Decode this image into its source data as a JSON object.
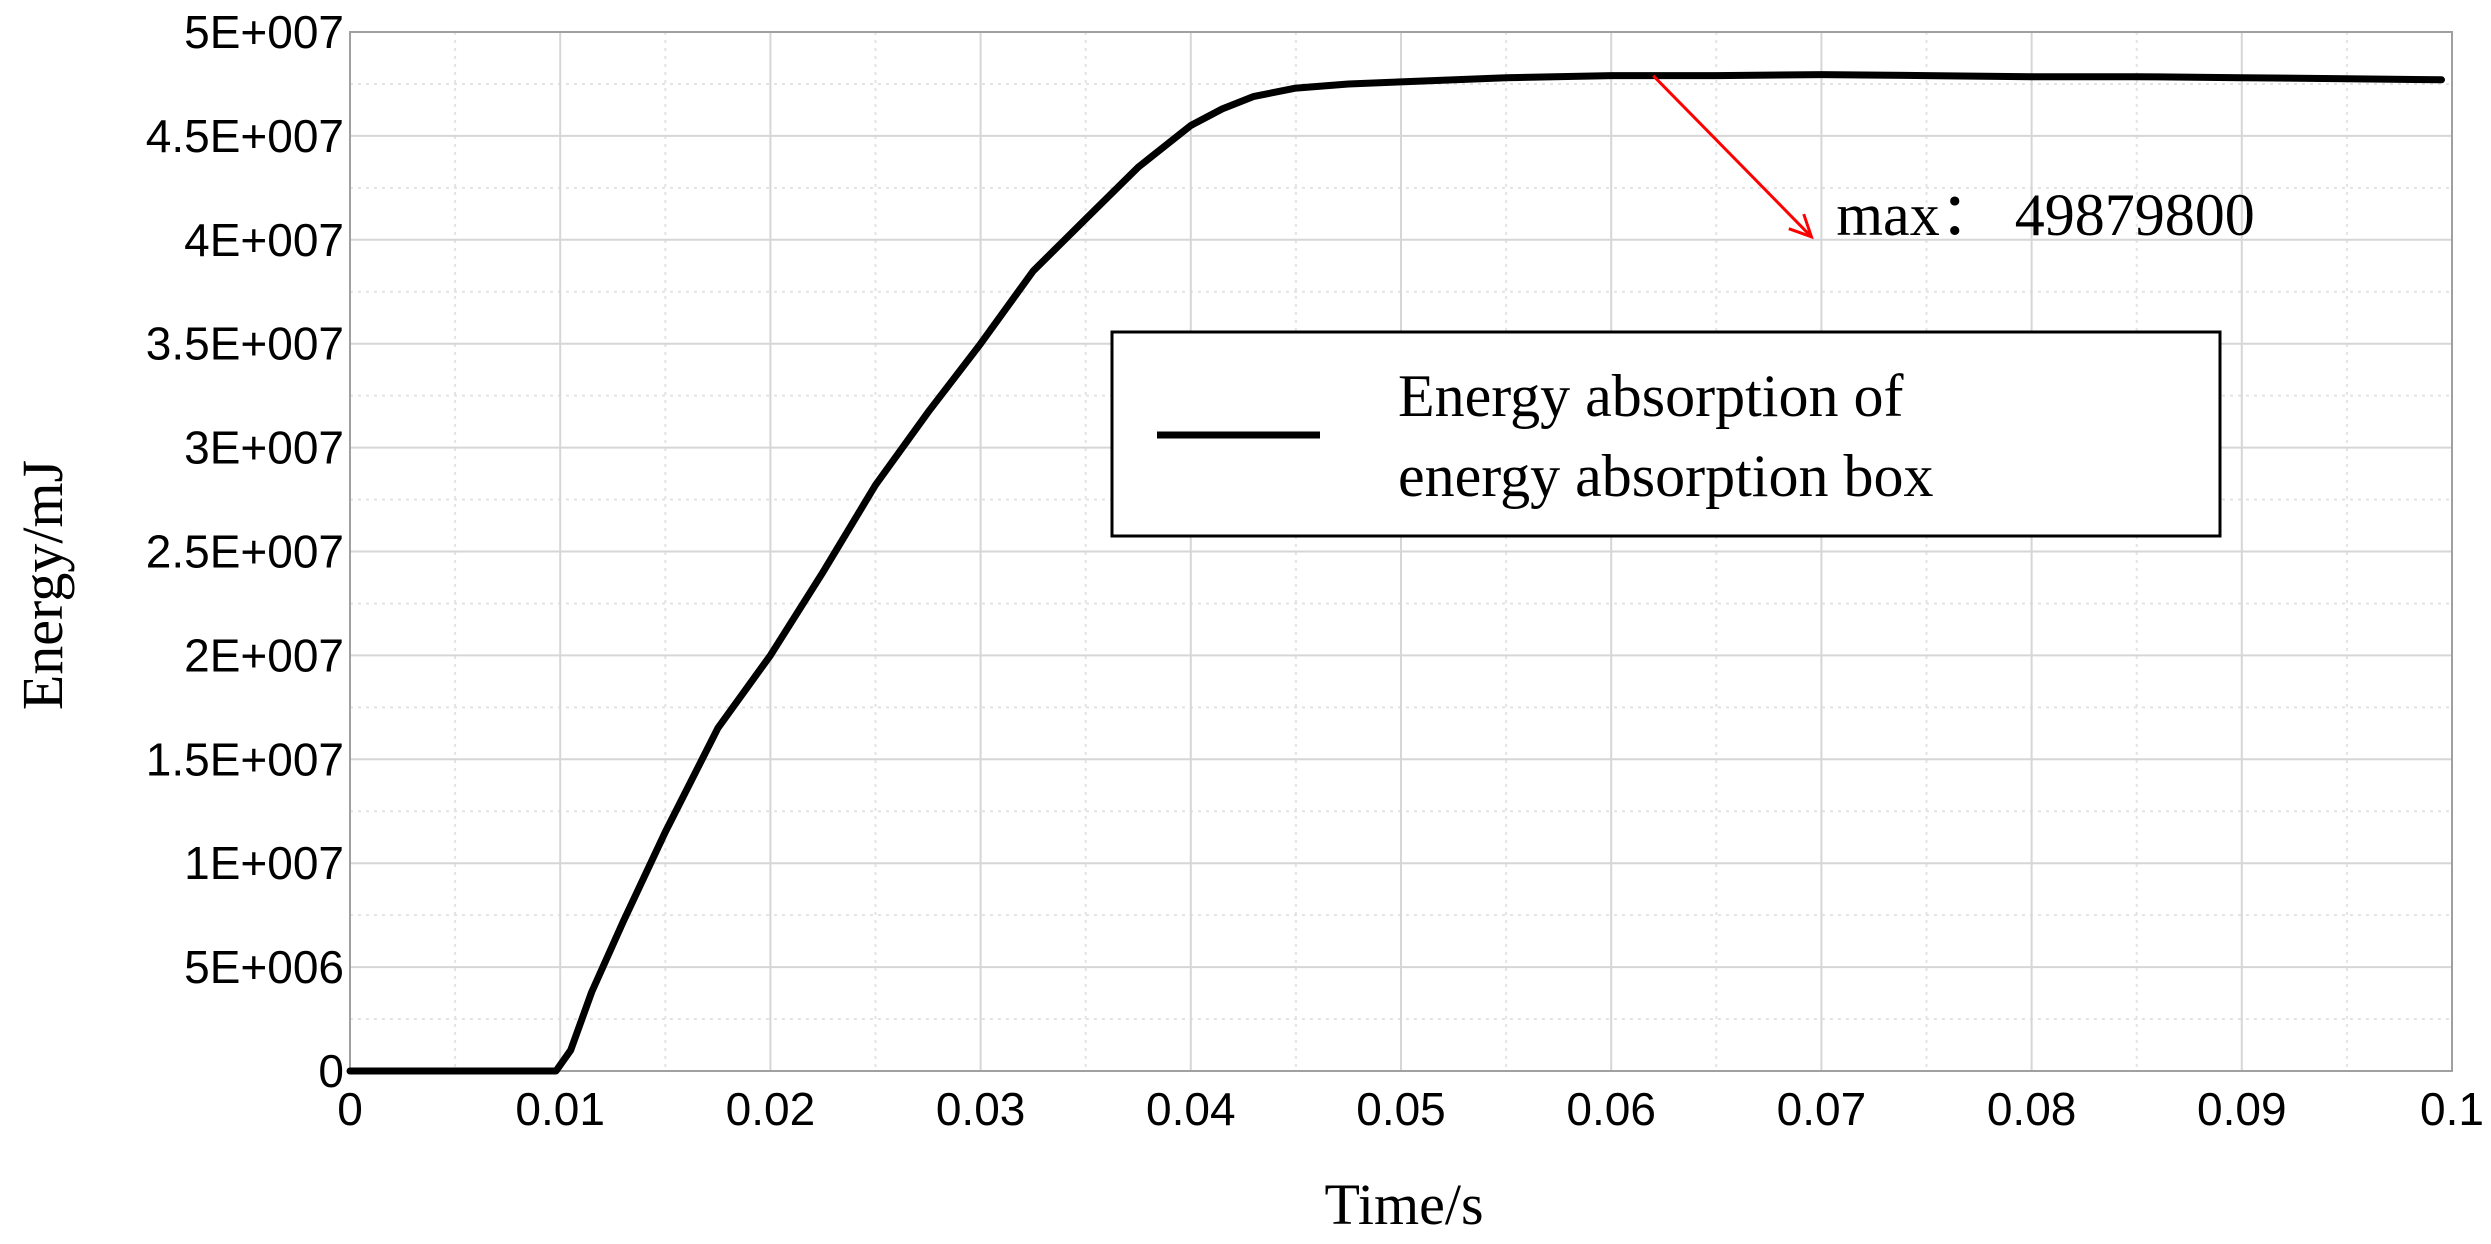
{
  "chart_data": {
    "type": "line",
    "title": "",
    "xlabel": "Time/s",
    "ylabel": "Energy/mJ",
    "xlim": [
      0,
      0.1
    ],
    "ylim": [
      0,
      50000000
    ],
    "x_ticks": [
      0,
      0.01,
      0.02,
      0.03,
      0.04,
      0.05,
      0.06,
      0.07,
      0.08,
      0.09,
      0.1
    ],
    "x_tick_labels": [
      "0",
      "0.01",
      "0.02",
      "0.03",
      "0.04",
      "0.05",
      "0.06",
      "0.07",
      "0.08",
      "0.09",
      "0.1"
    ],
    "y_ticks": [
      0,
      5000000,
      10000000,
      15000000,
      20000000,
      25000000,
      30000000,
      35000000,
      40000000,
      45000000,
      50000000
    ],
    "y_tick_labels": [
      "0",
      "5E+006",
      "1E+007",
      "1.5E+007",
      "2E+007",
      "2.5E+007",
      "3E+007",
      "3.5E+007",
      "4E+007",
      "4.5E+007",
      "5E+007"
    ],
    "grid": true,
    "minor_grid": true,
    "legend": {
      "placement": "upper-right",
      "line1": "Energy absorption of",
      "line2": "energy absorption box"
    },
    "annotation": {
      "text": "max： 49879800",
      "color": "#ff0000",
      "point": [
        0.062,
        47900000
      ],
      "text_anchor": [
        0.07,
        40000000
      ]
    },
    "series": [
      {
        "name": "Energy absorption of energy absorption box",
        "color": "#000000",
        "x": [
          0,
          0.005,
          0.0098,
          0.0105,
          0.0115,
          0.013,
          0.015,
          0.0175,
          0.02,
          0.0225,
          0.025,
          0.0275,
          0.03,
          0.0325,
          0.035,
          0.0375,
          0.039,
          0.04,
          0.0415,
          0.043,
          0.045,
          0.0475,
          0.05,
          0.055,
          0.06,
          0.065,
          0.07,
          0.075,
          0.08,
          0.085,
          0.09,
          0.095,
          0.0995
        ],
        "y": [
          0,
          0,
          0,
          1000000,
          3800000,
          7200000,
          11500000,
          16500000,
          20000000,
          24000000,
          28200000,
          31700000,
          35000000,
          38500000,
          41000000,
          43500000,
          44700000,
          45500000,
          46300000,
          46900000,
          47300000,
          47500000,
          47600000,
          47800000,
          47900000,
          47900000,
          47950000,
          47900000,
          47850000,
          47850000,
          47800000,
          47750000,
          47700000
        ]
      }
    ]
  }
}
